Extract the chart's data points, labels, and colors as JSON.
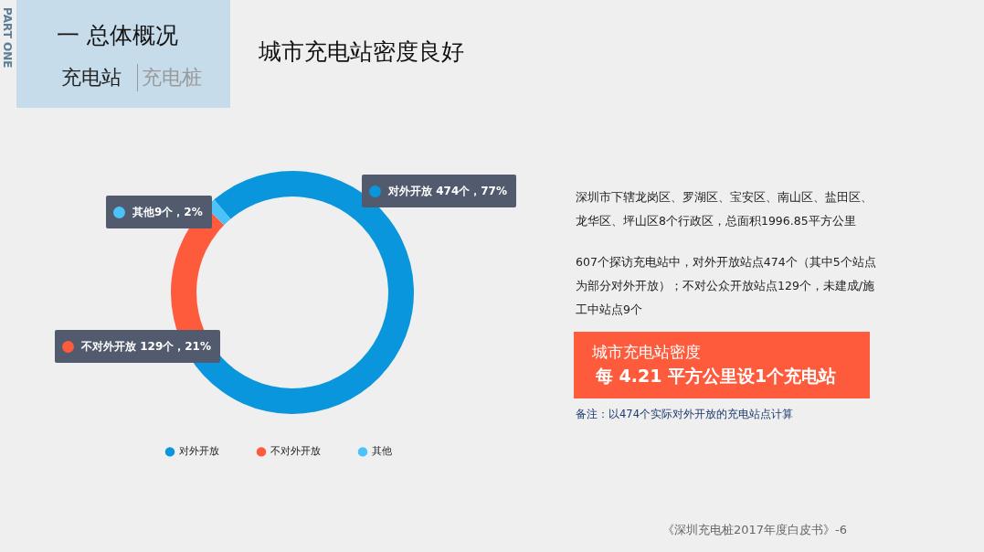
{
  "chart_data": {
    "type": "donut",
    "title": "城市充电站密度良好",
    "categories": [
      "对外开放",
      "不对外开放",
      "其他"
    ],
    "values": [
      474,
      129,
      9
    ],
    "colors": [
      "#0a96dc",
      "#fe5a3c",
      "#4cc3f8"
    ],
    "value_labels": [
      "对外开放 474个，77%",
      "不对外开放 129个，21%",
      "其他9个，2%"
    ],
    "legend": "bottom",
    "annotations": [
      "一 总体概况",
      "充电站",
      "充电桩",
      "PART ONE",
      "深圳市下辖龙岗区、罗湖区、宝安区、南山区、盐田区、龙华区、坪山区8个行政区，总面积1996.85平方公里",
      "607个探访充电站中，对外开放站点474个（其中5个站点为部分对外开放）；不对公众开放站点129个，未建成/施工中站点9个",
      "城市充电站密度",
      "每 4.21 平方公里设1个充电站",
      "备注：以474个实际对外开放的充电站点计算",
      "《深圳充电桩2017年度白皮书》-6"
    ]
  }
}
